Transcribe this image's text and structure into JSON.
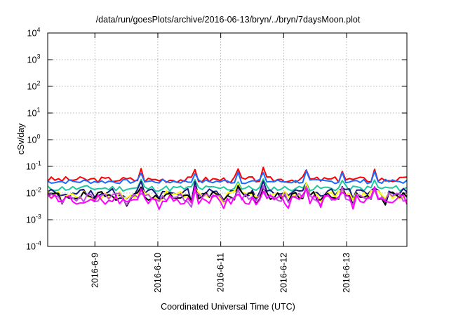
{
  "chart_data": {
    "type": "line",
    "title": "/data/run/goesPlots/archive/2016-06-13/bryn/../bryn/7daysMoon.plot",
    "xlabel": "Coordinated Universal Time (UTC)",
    "ylabel": "cSv/day",
    "y_scale": "log",
    "ylim": [
      0.0001,
      10000
    ],
    "xlim": [
      "2016-06-08 06:00",
      "2016-06-13 23:00"
    ],
    "grid": true,
    "y_ticks": [
      {
        "base": "10",
        "exp": "-4"
      },
      {
        "base": "10",
        "exp": "-3"
      },
      {
        "base": "10",
        "exp": "-2"
      },
      {
        "base": "10",
        "exp": "-1"
      },
      {
        "base": "10",
        "exp": "0"
      },
      {
        "base": "10",
        "exp": "1"
      },
      {
        "base": "10",
        "exp": "2"
      },
      {
        "base": "10",
        "exp": "3"
      },
      {
        "base": "10",
        "exp": "4"
      }
    ],
    "x_ticks": [
      "2016-6-9",
      "2016-6-10",
      "2016-6-11",
      "2016-6-12",
      "2016-6-13"
    ],
    "series": [
      {
        "color": "#ff0000",
        "base": 0.032,
        "amp": 0.22,
        "seed": 3
      },
      {
        "color": "#1a6cff",
        "base": 0.027,
        "amp": 0.16,
        "seed": 7
      },
      {
        "color": "#20c8a0",
        "base": 0.015,
        "amp": 0.22,
        "seed": 11
      },
      {
        "color": "#1a1a80",
        "base": 0.0105,
        "amp": 0.3,
        "seed": 13
      },
      {
        "color": "#ffff00",
        "base": 0.0085,
        "amp": 0.32,
        "seed": 17
      },
      {
        "color": "#000000",
        "base": 0.0078,
        "amp": 0.32,
        "seed": 19
      },
      {
        "color": "#c050e0",
        "base": 0.0068,
        "amp": 0.34,
        "seed": 23
      },
      {
        "color": "#ff00ff",
        "base": 0.0058,
        "amp": 0.36,
        "seed": 29
      }
    ]
  }
}
